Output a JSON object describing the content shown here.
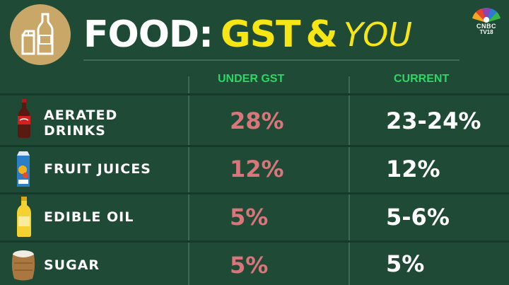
{
  "title": {
    "part1": "FOOD",
    "colon": ":",
    "part2": "GST",
    "amp": "&",
    "part3": "YOU"
  },
  "logo": {
    "line1": "CNBC",
    "line2": "TV18"
  },
  "table": {
    "headers": [
      "UNDER GST",
      "CURRENT"
    ],
    "rows": [
      {
        "label_lines": [
          "AERATED",
          "DRINKS"
        ],
        "under_gst": "28%",
        "current": "23-24%",
        "icon": "soda-bottle-icon"
      },
      {
        "label_lines": [
          "FRUIT JUICES"
        ],
        "under_gst": "12%",
        "current": "12%",
        "icon": "juice-carton-icon"
      },
      {
        "label_lines": [
          "EDIBLE OIL"
        ],
        "under_gst": "5%",
        "current": "5-6%",
        "icon": "oil-bottle-icon"
      },
      {
        "label_lines": [
          "SUGAR"
        ],
        "under_gst": "5%",
        "current": "5%",
        "icon": "sugar-sack-icon"
      }
    ]
  },
  "colors": {
    "background": "#1f4a35",
    "badge": "#c9a768",
    "title_white": "#ffffff",
    "title_yellow": "#f5e614",
    "header_green": "#2fd566",
    "gst_value": "#d9767b"
  }
}
